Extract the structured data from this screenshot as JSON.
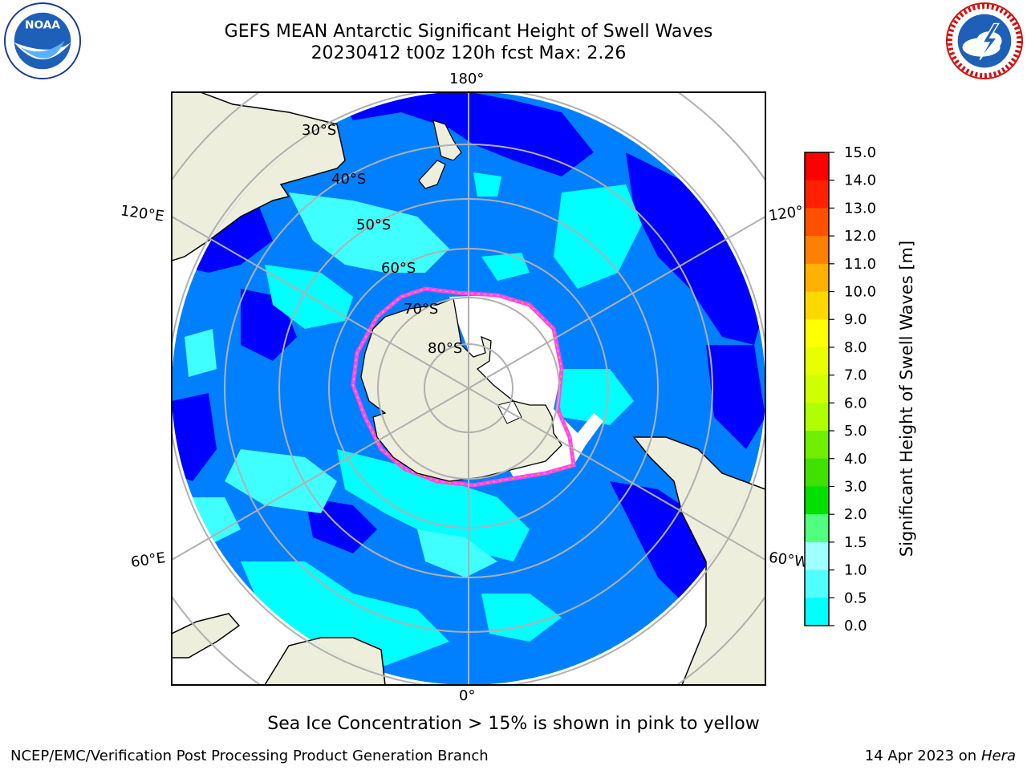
{
  "title_line1": "GEFS MEAN Antarctic Significant Height of Swell Waves",
  "title_line2": "20230412 t00z 120h fcst   Max: 2.26",
  "map": {
    "projection": "south-polar-stereographic",
    "longitude_labels": {
      "top": "180°",
      "bottom": "0°",
      "upper_left": "120°E",
      "lower_left": "60°E",
      "upper_right": "120°",
      "lower_right": "60°W"
    },
    "latitude_labels": [
      "30°S",
      "40°S",
      "50°S",
      "60°S",
      "70°S",
      "80°S"
    ],
    "colors": {
      "land": "#eeeedc",
      "ocean_low": "#0000ff",
      "ocean_mid": "#0080ff",
      "ocean_high": "#00ffff",
      "ice": "#ffffff",
      "grid": "#b0b0b0"
    }
  },
  "colorbar": {
    "label": "Significant Height of Swell Waves [m]",
    "ticks": [
      "15.0",
      "14.0",
      "13.0",
      "12.0",
      "11.0",
      "10.0",
      "9.0",
      "8.0",
      "7.0",
      "6.0",
      "5.0",
      "4.0",
      "3.0",
      "2.0",
      "1.5",
      "1.0",
      "0.5",
      "0.0"
    ],
    "bands": [
      "#ff0000",
      "#ff2000",
      "#ff5000",
      "#ff8000",
      "#ffb000",
      "#ffd800",
      "#ffff00",
      "#e8ff00",
      "#d0ff00",
      "#b0ff00",
      "#70ee00",
      "#40e000",
      "#00e000",
      "#50ff80",
      "#a0ffff",
      "#50ffff",
      "#00ffff",
      "#0080ff",
      "#0000ff"
    ]
  },
  "sea_ice_note": "Sea Ice Concentration > 15% is shown in pink to yellow",
  "footer": {
    "left": "NCEP/EMC/Verification Post Processing Product Generation Branch",
    "right_prefix": "14 Apr 2023 on ",
    "right_host": "Hera"
  },
  "logos": {
    "noaa_text": "NOAA"
  }
}
